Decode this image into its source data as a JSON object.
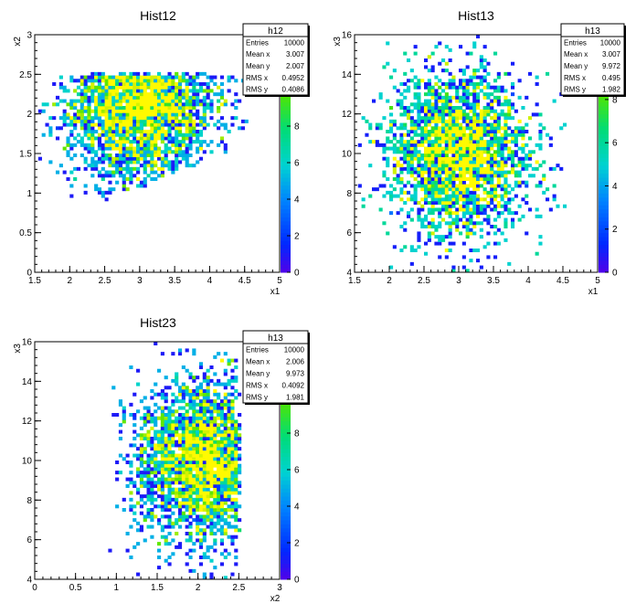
{
  "chart_data": [
    {
      "type": "heatmap",
      "title": "Hist12",
      "xlabel": "x1",
      "ylabel": "x2",
      "xlim": [
        1.5,
        5
      ],
      "ylim": [
        0,
        3
      ],
      "xticks": [
        1.5,
        2,
        2.5,
        3,
        3.5,
        4,
        4.5,
        5
      ],
      "yticks": [
        0,
        0.5,
        1,
        1.5,
        2,
        2.5,
        3
      ],
      "colorbar_ticks": [
        0,
        2,
        4,
        6,
        8,
        10,
        12
      ],
      "zmax": 13,
      "stats": {
        "name": "h12",
        "rows": [
          {
            "label": "Entries",
            "value": "10000"
          },
          {
            "label": "Mean x",
            "value": "3.007"
          },
          {
            "label": "Mean y",
            "value": "2.007"
          },
          {
            "label": "RMS x",
            "value": "0.4952"
          },
          {
            "label": "RMS y",
            "value": "0.4086"
          }
        ]
      },
      "distribution": "x2 = x1 / 1.5 clipped to [1.0, 2.5] plus spread; uniform upper cut at 2.5"
    },
    {
      "type": "heatmap",
      "title": "Hist13",
      "xlabel": "x1",
      "ylabel": "x3",
      "xlim": [
        1.5,
        5
      ],
      "ylim": [
        4,
        16
      ],
      "xticks": [
        1.5,
        2,
        2.5,
        3,
        3.5,
        4,
        4.5,
        5
      ],
      "yticks": [
        4,
        6,
        8,
        10,
        12,
        14,
        16
      ],
      "colorbar_ticks": [
        0,
        2,
        4,
        6,
        8,
        10
      ],
      "zmax": 11,
      "stats": {
        "name": "h13",
        "rows": [
          {
            "label": "Entries",
            "value": "10000"
          },
          {
            "label": "Mean x",
            "value": "3.007"
          },
          {
            "label": "Mean y",
            "value": "9.972"
          },
          {
            "label": "RMS x",
            "value": "0.495"
          },
          {
            "label": "RMS y",
            "value": "1.982"
          }
        ]
      }
    },
    {
      "type": "heatmap",
      "title": "Hist23",
      "xlabel": "x2",
      "ylabel": "x3",
      "xlim": [
        0,
        3
      ],
      "ylim": [
        4,
        16
      ],
      "xticks": [
        0,
        0.5,
        1,
        1.5,
        2,
        2.5,
        3
      ],
      "yticks": [
        4,
        6,
        8,
        10,
        12,
        14,
        16
      ],
      "colorbar_ticks": [
        0,
        2,
        4,
        6,
        8,
        10,
        12
      ],
      "zmax": 13,
      "stats": {
        "name": "h13",
        "rows": [
          {
            "label": "Entries",
            "value": "10000"
          },
          {
            "label": "Mean x",
            "value": "2.006"
          },
          {
            "label": "Mean y",
            "value": "9.973"
          },
          {
            "label": "RMS x",
            "value": "0.4092"
          },
          {
            "label": "RMS y",
            "value": "1.981"
          }
        ]
      }
    }
  ]
}
